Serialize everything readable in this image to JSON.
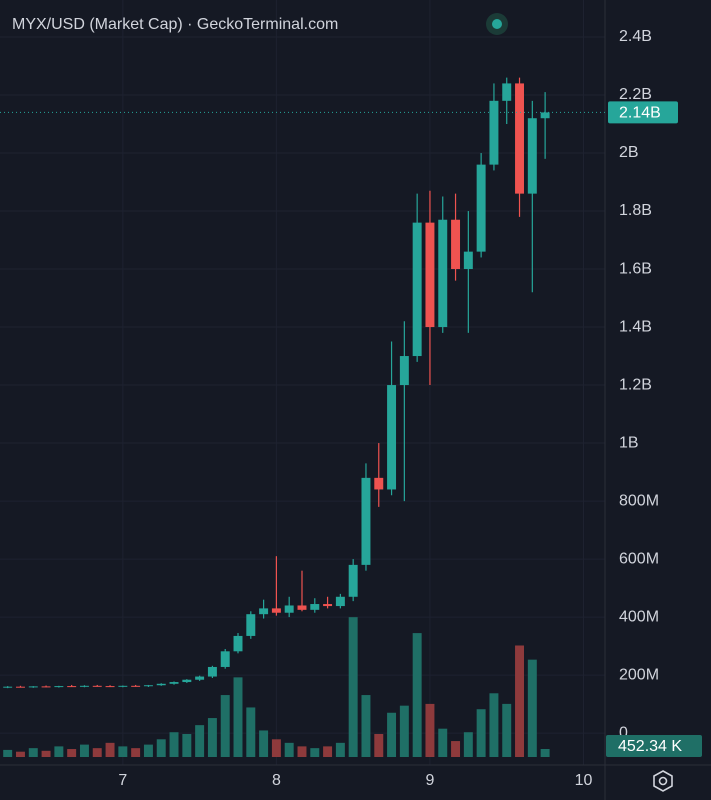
{
  "chart_data": {
    "type": "candlestick",
    "title": "MYX/USD (Market Cap) · GeckoTerminal.com",
    "x": [
      6.25,
      6.3333,
      6.4167,
      6.5,
      6.5833,
      6.6667,
      6.75,
      6.8333,
      6.9167,
      7,
      7.0833,
      7.1667,
      7.25,
      7.3333,
      7.4167,
      7.5,
      7.5833,
      7.6667,
      7.75,
      7.8333,
      7.9167,
      8,
      8.0833,
      8.1667,
      8.25,
      8.3333,
      8.4167,
      8.5,
      8.5833,
      8.6667,
      8.75,
      8.8333,
      8.9167,
      9,
      9.0833,
      9.1667,
      9.25,
      9.3333,
      9.4167,
      9.5,
      9.5833,
      9.6667,
      9.75
    ],
    "open": [
      158000000,
      160000000,
      159000000,
      161000000,
      160000000,
      162000000,
      161000000,
      163000000,
      162000000,
      161000000,
      163000000,
      162000000,
      165000000,
      170000000,
      176000000,
      184000000,
      195000000,
      228000000,
      282000000,
      335000000,
      410000000,
      430000000,
      415000000,
      440000000,
      425000000,
      445000000,
      438000000,
      470000000,
      580000000,
      880000000,
      840000000,
      1200000000,
      1300000000,
      1760000000,
      1400000000,
      1770000000,
      1600000000,
      1660000000,
      1960000000,
      2180000000,
      2240000000,
      1860000000,
      2120000000
    ],
    "high": [
      162000000,
      163000000,
      162000000,
      164000000,
      163000000,
      166000000,
      165000000,
      166000000,
      165000000,
      164000000,
      166000000,
      166000000,
      172000000,
      178000000,
      186000000,
      198000000,
      232000000,
      290000000,
      345000000,
      420000000,
      460000000,
      610000000,
      470000000,
      560000000,
      465000000,
      470000000,
      480000000,
      600000000,
      930000000,
      1000000000,
      1350000000,
      1420000000,
      1860000000,
      1870000000,
      1850000000,
      1860000000,
      1800000000,
      2000000000,
      2240000000,
      2260000000,
      2260000000,
      2180000000,
      2210000000
    ],
    "low": [
      155000000,
      157000000,
      156000000,
      158000000,
      157000000,
      159000000,
      158000000,
      160000000,
      159000000,
      158000000,
      160000000,
      159000000,
      163000000,
      167000000,
      173000000,
      180000000,
      190000000,
      222000000,
      275000000,
      325000000,
      395000000,
      405000000,
      400000000,
      420000000,
      415000000,
      430000000,
      430000000,
      455000000,
      560000000,
      780000000,
      820000000,
      800000000,
      1280000000,
      1200000000,
      1380000000,
      1560000000,
      1380000000,
      1640000000,
      1940000000,
      2100000000,
      1780000000,
      1520000000,
      1980000000
    ],
    "close": [
      160000000,
      159000000,
      161000000,
      160000000,
      162000000,
      161000000,
      163000000,
      162000000,
      161000000,
      163000000,
      162000000,
      165000000,
      170000000,
      176000000,
      184000000,
      195000000,
      228000000,
      282000000,
      335000000,
      410000000,
      430000000,
      415000000,
      440000000,
      425000000,
      445000000,
      438000000,
      470000000,
      580000000,
      880000000,
      840000000,
      1200000000,
      1300000000,
      1760000000,
      1400000000,
      1770000000,
      1600000000,
      1660000000,
      1960000000,
      2180000000,
      2240000000,
      1860000000,
      2120000000,
      2140000000
    ],
    "volume": [
      400000,
      300000,
      500000,
      350000,
      600000,
      450000,
      700000,
      500000,
      800000,
      600000,
      500000,
      700000,
      1000000,
      1400000,
      1300000,
      1800000,
      2200000,
      3500000,
      4500000,
      2800000,
      1500000,
      1000000,
      800000,
      600000,
      500000,
      600000,
      800000,
      7900000,
      3500000,
      1300000,
      2500000,
      2900000,
      7000000,
      3000000,
      1600000,
      900000,
      1400000,
      2700000,
      3600000,
      3000000,
      6300000,
      5500000,
      452340
    ],
    "last_label": "2.14B",
    "volume_last_label": "452.34 K",
    "xlim": [
      6.2,
      10.14
    ],
    "xticks": [
      7,
      8,
      9,
      10
    ],
    "ylim": [
      -110000000,
      2527600000
    ],
    "yticks": [
      0,
      {
        "value": 200000000,
        "label": "200M"
      },
      {
        "value": 400000000,
        "label": "400M"
      },
      {
        "value": 600000000,
        "label": "600M"
      },
      {
        "value": 800000000,
        "label": "800M"
      },
      {
        "value": 1000000000,
        "label": "1B"
      },
      {
        "value": 1200000000,
        "label": "1.2B"
      },
      {
        "value": 1400000000,
        "label": "1.4B"
      },
      {
        "value": 1600000000,
        "label": "1.6B"
      },
      {
        "value": 1800000000,
        "label": "1.8B"
      },
      {
        "value": 2000000000,
        "label": "2B"
      },
      {
        "value": 2200000000,
        "label": "2.2B"
      },
      {
        "value": 2400000000,
        "label": "2.4B"
      }
    ],
    "volume_lim": [
      0,
      10000000
    ],
    "up_color": "#26a69a",
    "down_color": "#ef5350",
    "volume_up_color": "#1f6f66",
    "volume_down_color": "#8e3a3c",
    "grid": true
  }
}
